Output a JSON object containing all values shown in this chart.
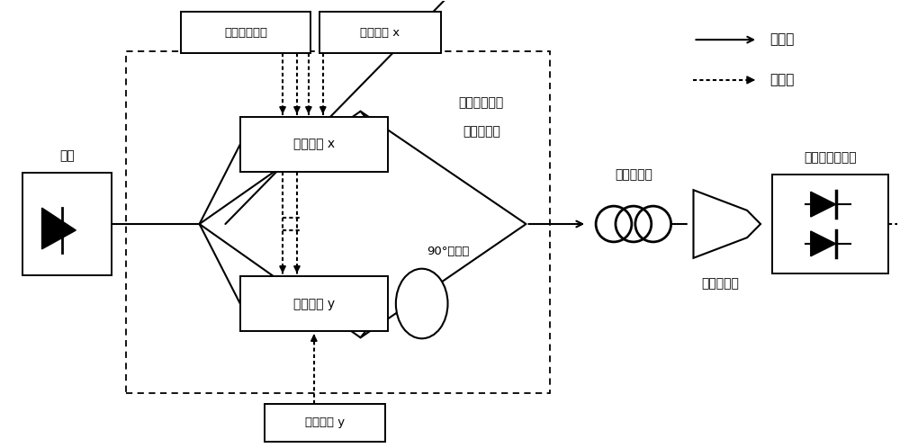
{
  "bg_color": "#ffffff",
  "legend_optical_label": "光通路",
  "legend_electrical_label": "电通路",
  "source_label": "光源",
  "rf_label": "射频输入单元",
  "dc_x_label": "直流偏置 x",
  "mod_x_label": "电光调制 x",
  "mod_y_label": "电光调制 y",
  "dc_y_label": "直流偏置 y",
  "rotator_label": "90°旋光器",
  "dualmod_line1": "双偏振双平行",
  "dualmod_line2": "电光调制器",
  "pc_label": "偏振控制器",
  "pbs_label": "偏振分束器",
  "bpd_label": "平衡光电探测器"
}
